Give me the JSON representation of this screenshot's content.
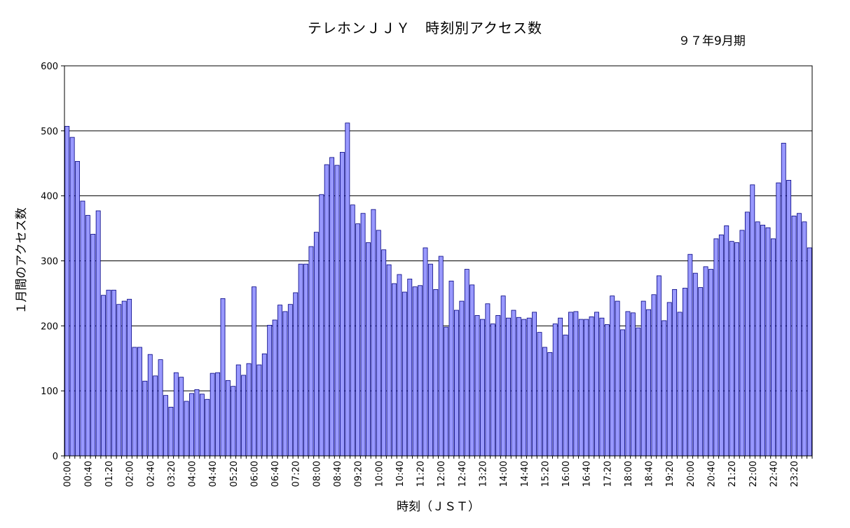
{
  "chart_data": {
    "type": "bar",
    "title": "テレホンＪＪＹ　時刻別アクセス数",
    "subtitle": "９７年9月期",
    "xlabel": "時刻（ＪＳＴ）",
    "ylabel": "１月間のアクセス数",
    "ylim": [
      0,
      600
    ],
    "yticks": [
      0,
      100,
      200,
      300,
      400,
      500,
      600
    ],
    "grid": true,
    "bar_color": "#9999ff",
    "bar_stroke": "#000080",
    "x_tick_labels": [
      "00:00",
      "00:40",
      "01:20",
      "02:00",
      "02:40",
      "03:20",
      "04:00",
      "04:40",
      "05:20",
      "06:00",
      "06:40",
      "07:20",
      "08:00",
      "08:40",
      "09:20",
      "10:00",
      "10:40",
      "11:20",
      "12:00",
      "12:40",
      "13:20",
      "14:00",
      "14:40",
      "15:20",
      "16:00",
      "16:40",
      "17:20",
      "18:00",
      "18:40",
      "19:20",
      "20:00",
      "20:40",
      "21:20",
      "22:00",
      "22:40",
      "23:20"
    ],
    "x_tick_every": 4,
    "interval_minutes": 10,
    "values": [
      507,
      490,
      453,
      392,
      370,
      341,
      377,
      247,
      255,
      255,
      233,
      238,
      241,
      167,
      167,
      115,
      156,
      123,
      148,
      93,
      75,
      128,
      121,
      84,
      96,
      102,
      95,
      87,
      127,
      128,
      242,
      116,
      107,
      140,
      124,
      142,
      260,
      140,
      157,
      201,
      209,
      232,
      222,
      233,
      251,
      295,
      295,
      322,
      344,
      402,
      448,
      459,
      447,
      467,
      512,
      386,
      357,
      373,
      328,
      379,
      347,
      317,
      294,
      265,
      279,
      252,
      272,
      260,
      262,
      320,
      295,
      256,
      307,
      198,
      269,
      224,
      238,
      287,
      263,
      216,
      210,
      234,
      203,
      216,
      246,
      212,
      224,
      213,
      210,
      212,
      221,
      190,
      167,
      159,
      203,
      212,
      186,
      221,
      222,
      210,
      210,
      214,
      221,
      212,
      202,
      246,
      238,
      194,
      222,
      220,
      197,
      238,
      225,
      248,
      277,
      208,
      236,
      256,
      221,
      258,
      310,
      281,
      259,
      291,
      287,
      334,
      340,
      354,
      330,
      328,
      347,
      375,
      417,
      360,
      355,
      351,
      334,
      420,
      481,
      424,
      369,
      373,
      360,
      320
    ]
  }
}
